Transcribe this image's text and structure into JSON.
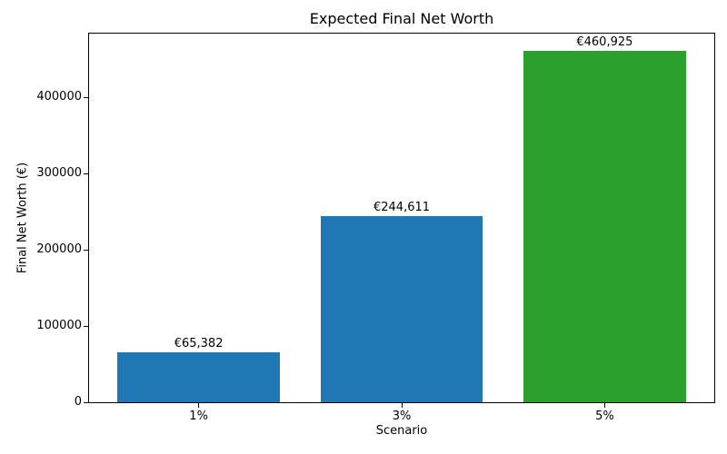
{
  "chart_data": {
    "type": "bar",
    "title": "Expected Final Net Worth",
    "xlabel": "Scenario",
    "ylabel": "Final Net Worth (€)",
    "categories": [
      "1%",
      "3%",
      "5%"
    ],
    "values": [
      65382,
      244611,
      460925
    ],
    "value_labels": [
      "€65,382",
      "€244,611",
      "€460,925"
    ],
    "bar_colors": [
      "#1f77b4",
      "#1f77b4",
      "#2ca02c"
    ],
    "yticks": [
      {
        "value": 0,
        "label": "0"
      },
      {
        "value": 100000,
        "label": "100000"
      },
      {
        "value": 200000,
        "label": "200000"
      },
      {
        "value": 300000,
        "label": "300000"
      },
      {
        "value": 400000,
        "label": "400000"
      }
    ],
    "ylim": [
      0,
      483971
    ],
    "xlim": [
      -0.54,
      2.54
    ],
    "bar_width": 0.8,
    "grid": false,
    "legend": "none",
    "background": "#ffffff"
  }
}
